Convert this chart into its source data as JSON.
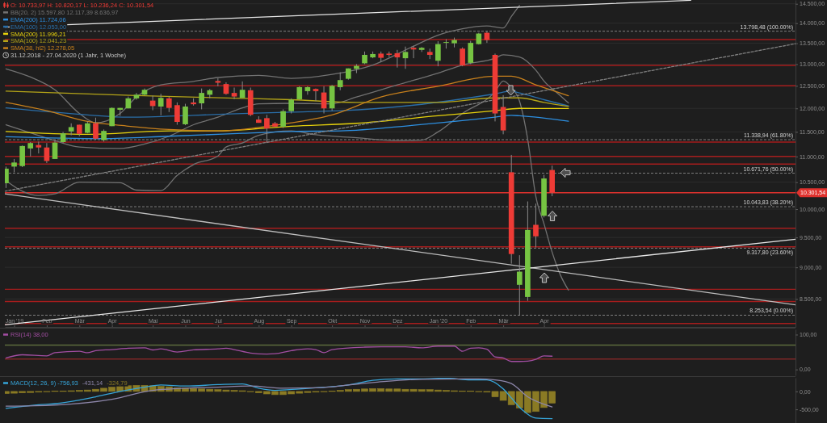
{
  "chart_data": [
    {
      "type": "candlestick",
      "x": [
        "2018-12-31",
        "2019-01-07",
        "2019-01-14",
        "2019-01-21",
        "2019-01-28",
        "2019-02-04",
        "2019-02-11",
        "2019-02-18",
        "2019-02-25",
        "2019-03-04",
        "2019-03-11",
        "2019-03-18",
        "2019-03-25",
        "2019-04-01",
        "2019-04-08",
        "2019-04-15",
        "2019-04-22",
        "2019-04-29",
        "2019-05-06",
        "2019-05-13",
        "2019-05-20",
        "2019-05-27",
        "2019-06-03",
        "2019-06-10",
        "2019-06-17",
        "2019-06-24",
        "2019-07-01",
        "2019-07-08",
        "2019-07-15",
        "2019-07-22",
        "2019-07-29",
        "2019-08-05",
        "2019-08-12",
        "2019-08-19",
        "2019-08-26",
        "2019-09-02",
        "2019-09-09",
        "2019-09-16",
        "2019-09-23",
        "2019-09-30",
        "2019-10-07",
        "2019-10-14",
        "2019-10-21",
        "2019-10-28",
        "2019-11-04",
        "2019-11-11",
        "2019-11-18",
        "2019-11-25",
        "2019-12-02",
        "2019-12-09",
        "2019-12-16",
        "2019-12-23",
        "2019-12-30",
        "2020-01-06",
        "2020-01-13",
        "2020-01-20",
        "2020-01-27",
        "2020-02-03",
        "2020-02-10",
        "2020-02-17",
        "2020-02-24",
        "2020-03-02",
        "2020-03-09",
        "2020-03-16",
        "2020-03-23",
        "2020-03-30",
        "2020-04-06",
        "2020-04-13"
      ],
      "ohlc": [
        [
          10480,
          10800,
          10390,
          10760
        ],
        [
          10800,
          10950,
          10690,
          10880
        ],
        [
          10810,
          11220,
          10790,
          11210
        ],
        [
          11160,
          11290,
          11000,
          11270
        ],
        [
          11230,
          11300,
          11060,
          11180
        ],
        [
          11180,
          11270,
          10870,
          10910
        ],
        [
          10950,
          11330,
          10950,
          11280
        ],
        [
          11290,
          11500,
          11270,
          11470
        ],
        [
          11510,
          11680,
          11430,
          11600
        ],
        [
          11650,
          11650,
          11410,
          11460
        ],
        [
          11480,
          11720,
          11470,
          11680
        ],
        [
          11680,
          11800,
          11340,
          11360
        ],
        [
          11330,
          11550,
          11300,
          11520
        ],
        [
          11620,
          12020,
          11620,
          12010
        ],
        [
          11970,
          12010,
          11840,
          12010
        ],
        [
          12000,
          12260,
          12000,
          12220
        ],
        [
          12220,
          12340,
          12190,
          12300
        ],
        [
          12300,
          12440,
          12290,
          12410
        ],
        [
          12170,
          12280,
          11960,
          12050
        ],
        [
          12040,
          12320,
          11850,
          12230
        ],
        [
          12220,
          12250,
          11920,
          12010
        ],
        [
          12070,
          12130,
          11650,
          11710
        ],
        [
          11660,
          12100,
          11640,
          12040
        ],
        [
          12130,
          12220,
          12060,
          12090
        ],
        [
          12110,
          12440,
          11980,
          12340
        ],
        [
          12300,
          12430,
          12220,
          12400
        ],
        [
          12610,
          12670,
          12490,
          12570
        ],
        [
          12540,
          12580,
          12300,
          12320
        ],
        [
          12340,
          12460,
          12200,
          12260
        ],
        [
          12230,
          12600,
          12230,
          12410
        ],
        [
          12400,
          12460,
          11830,
          11860
        ],
        [
          11760,
          11830,
          11690,
          11690
        ],
        [
          11790,
          11860,
          11270,
          11570
        ],
        [
          11680,
          11710,
          11600,
          11610
        ],
        [
          11610,
          11980,
          11580,
          11940
        ],
        [
          11940,
          12220,
          11890,
          12190
        ],
        [
          12200,
          12490,
          12190,
          12470
        ],
        [
          12380,
          12490,
          12300,
          12470
        ],
        [
          12430,
          12440,
          12160,
          12380
        ],
        [
          12350,
          12490,
          11890,
          12000
        ],
        [
          12000,
          12520,
          11950,
          12500
        ],
        [
          12470,
          12810,
          12400,
          12630
        ],
        [
          12660,
          12900,
          12640,
          12900
        ],
        [
          12890,
          13000,
          12790,
          12960
        ],
        [
          13020,
          13300,
          13000,
          13220
        ],
        [
          13160,
          13300,
          13140,
          13240
        ],
        [
          13250,
          13300,
          13050,
          13150
        ],
        [
          13250,
          13300,
          13170,
          13220
        ],
        [
          13260,
          13340,
          12920,
          13160
        ],
        [
          13140,
          13420,
          12890,
          13290
        ],
        [
          13390,
          13430,
          13140,
          13350
        ],
        [
          13340,
          13410,
          13290,
          13390
        ],
        [
          13290,
          13370,
          13120,
          13220
        ],
        [
          13080,
          13550,
          12950,
          13480
        ],
        [
          13520,
          13600,
          13370,
          13530
        ],
        [
          13500,
          13640,
          13400,
          13580
        ],
        [
          13370,
          13400,
          12950,
          12970
        ],
        [
          13030,
          13560,
          13000,
          13510
        ],
        [
          13480,
          13760,
          13470,
          13740
        ],
        [
          13760,
          13800,
          13510,
          13580
        ],
        [
          13220,
          13250,
          11720,
          11890
        ],
        [
          12030,
          12290,
          11450,
          11530
        ],
        [
          10690,
          11030,
          9060,
          9220
        ],
        [
          8720,
          9200,
          8250,
          8930
        ],
        [
          8530,
          10140,
          8470,
          9630
        ],
        [
          9720,
          10100,
          9330,
          9520
        ],
        [
          9880,
          10640,
          9850,
          10570
        ],
        [
          10733.97,
          10820.17,
          10236.24,
          10301.54
        ]
      ],
      "colors": [
        "#76c442",
        "#76c442",
        "#76c442",
        "#76c442",
        "#ee3b36",
        "#ee3b36",
        "#76c442",
        "#76c442",
        "#76c442",
        "#ee3b36",
        "#76c442",
        "#ee3b36",
        "#76c442",
        "#76c442",
        "#76c442",
        "#76c442",
        "#76c442",
        "#76c442",
        "#ee3b36",
        "#76c442",
        "#ee3b36",
        "#ee3b36",
        "#76c442",
        "#ee3b36",
        "#76c442",
        "#76c442",
        "#ee3b36",
        "#ee3b36",
        "#ee3b36",
        "#76c442",
        "#ee3b36",
        "#ee3b36",
        "#ee3b36",
        "#ee3b36",
        "#76c442",
        "#76c442",
        "#76c442",
        "#76c442",
        "#ee3b36",
        "#ee3b36",
        "#76c442",
        "#76c442",
        "#76c442",
        "#76c442",
        "#76c442",
        "#76c442",
        "#ee3b36",
        "#ee3b36",
        "#ee3b36",
        "#76c442",
        "#ee3b36",
        "#76c442",
        "#ee3b36",
        "#76c442",
        "#76c442",
        "#76c442",
        "#ee3b36",
        "#76c442",
        "#76c442",
        "#ee3b36",
        "#ee3b36",
        "#ee3b36",
        "#ee3b36",
        "#76c442",
        "#76c442",
        "#ee3b36",
        "#76c442",
        "#ee3b36"
      ],
      "series": [
        {
          "type": "line",
          "color": "#727272",
          "x": [
            "2018-12-31",
            "2019-01-21",
            "2019-02-11",
            "2019-03-04",
            "2019-03-18",
            "2019-04-08",
            "2019-04-22",
            "2019-05-13",
            "2019-06-10",
            "2019-07-01",
            "2019-08-05",
            "2019-09-02",
            "2019-10-07",
            "2019-11-11",
            "2019-12-16",
            "2020-01-06",
            "2020-01-27",
            "2020-02-17",
            "2020-03-02",
            "2020-03-09",
            "2020-03-16"
          ],
          "values": [
            12890,
            12700,
            12410,
            11890,
            11690,
            11890,
            12250,
            12520,
            12600,
            12690,
            12740,
            12670,
            12760,
            12980,
            13430,
            13700,
            13860,
            13930,
            13880,
            14170,
            14460
          ]
        },
        {
          "type": "line",
          "name": "BB(20, 2) 15.597,80 12.117,39 8.636,97",
          "color": "#727272",
          "x": [
            "2018-12-31",
            "2019-01-21",
            "2019-02-11",
            "2019-03-04",
            "2019-04-08",
            "2019-04-29",
            "2019-05-20",
            "2019-06-10",
            "2019-07-01",
            "2019-07-22",
            "2019-08-05",
            "2019-09-02",
            "2019-10-07",
            "2019-10-28",
            "2019-12-02",
            "2020-01-06",
            "2020-01-27",
            "2020-02-24",
            "2020-03-02",
            "2020-03-16",
            "2020-03-30",
            "2020-04-06",
            "2020-04-20",
            "2020-04-27"
          ],
          "values": [
            11650,
            11480,
            11320,
            11190,
            11160,
            11250,
            11410,
            11650,
            11810,
            12010,
            12100,
            12110,
            12100,
            12250,
            12520,
            12790,
            12980,
            13140,
            13220,
            13170,
            12860,
            12610,
            12280,
            12117.39
          ]
        },
        {
          "type": "line",
          "color": "#727272",
          "x": [
            "2018-12-31",
            "2019-01-14",
            "2019-01-28",
            "2019-02-11",
            "2019-03-04",
            "2019-04-08",
            "2019-04-22",
            "2019-05-13",
            "2019-05-27",
            "2019-06-10",
            "2019-07-01",
            "2019-07-08",
            "2019-07-22",
            "2019-08-05",
            "2019-09-02",
            "2019-09-23",
            "2019-10-28",
            "2019-12-02",
            "2019-12-23",
            "2020-01-06",
            "2020-01-27",
            "2020-02-24",
            "2020-03-02",
            "2020-03-09",
            "2020-03-16",
            "2020-03-23",
            "2020-03-30",
            "2020-04-06",
            "2020-04-13",
            "2020-04-20",
            "2020-04-27"
          ],
          "values": [
            10530,
            10330,
            10250,
            10280,
            10500,
            10490,
            10350,
            10340,
            10630,
            10840,
            11010,
            11190,
            11270,
            11430,
            11520,
            11440,
            11380,
            11320,
            11330,
            11500,
            11890,
            12370,
            12610,
            12460,
            12160,
            11350,
            10230,
            9740,
            9250,
            8880,
            8636.97
          ]
        },
        {
          "type": "line",
          "name": "EMA(200) 11.724,06",
          "color": "#2d8fe0",
          "x": [
            "2018-12-31",
            "2019-03-25",
            "2019-05-20",
            "2019-07-22",
            "2019-09-02",
            "2019-10-14",
            "2019-12-16",
            "2020-02-24",
            "2020-03-09",
            "2020-03-16",
            "2020-04-27"
          ],
          "values": [
            11400,
            11360,
            11410,
            11470,
            11510,
            11520,
            11640,
            11810,
            11850,
            11840,
            11724.06
          ]
        },
        {
          "type": "line",
          "name": "EMA(100) 12.053,00",
          "color": "#2a6ea8",
          "x": [
            "2018-12-31",
            "2019-03-11",
            "2019-04-15",
            "2019-06-10",
            "2019-07-22",
            "2019-09-02",
            "2019-10-14",
            "2019-12-16",
            "2020-02-24",
            "2020-03-09",
            "2020-03-16",
            "2020-04-06",
            "2020-04-27"
          ],
          "values": [
            12010,
            11860,
            11810,
            11850,
            11890,
            11920,
            11950,
            12070,
            12320,
            12380,
            12340,
            12190,
            12053
          ]
        },
        {
          "type": "line",
          "name": "SMA(200) 11.996,21",
          "color": "#e6d10c",
          "x": [
            "2018-12-31",
            "2019-03-11",
            "2019-05-20",
            "2019-07-01",
            "2019-09-02",
            "2019-10-28",
            "2020-01-06",
            "2020-02-24",
            "2020-03-16",
            "2020-04-27"
          ],
          "values": [
            11510,
            11450,
            11520,
            11520,
            11620,
            11680,
            11840,
            11950,
            12000,
            11996.21
          ]
        },
        {
          "type": "line",
          "name": "SMA(100) 12.041,23",
          "color": "#b4a418",
          "x": [
            "2018-12-31",
            "2019-04-22",
            "2019-07-22",
            "2019-09-02",
            "2019-10-28",
            "2020-01-06",
            "2020-02-24",
            "2020-03-16",
            "2020-04-06",
            "2020-04-27"
          ],
          "values": [
            12380,
            12280,
            12220,
            12190,
            12130,
            12130,
            12230,
            12230,
            12130,
            12041.23
          ]
        },
        {
          "type": "line",
          "name": "SMA(38, hl2) 12.278,05",
          "color": "#c8801c",
          "x": [
            "2018-12-31",
            "2019-02-04",
            "2019-03-11",
            "2019-04-15",
            "2019-05-20",
            "2019-07-01",
            "2019-08-19",
            "2019-09-02",
            "2019-10-07",
            "2019-11-18",
            "2020-01-06",
            "2020-02-24",
            "2020-03-09",
            "2020-03-30",
            "2020-04-27"
          ],
          "values": [
            12130,
            11950,
            11720,
            11620,
            11550,
            11520,
            11640,
            11690,
            11860,
            12250,
            12490,
            12720,
            12720,
            12520,
            12278.05
          ]
        },
        {
          "type": "line",
          "color": "#e6e6e6",
          "x": [
            "2018-12-30",
            "2020-08-10"
          ],
          "values": [
            13900,
            14590
          ]
        },
        {
          "type": "line",
          "color": "#808080",
          "line_style": "dashed",
          "x": [
            "2018-12-30",
            "2020-11-08"
          ],
          "values": [
            10330,
            13490
          ]
        },
        {
          "type": "line",
          "color": "#bdbdbd",
          "x": [
            "2018-12-30",
            "2020-11-08"
          ],
          "values": [
            10280,
            8410
          ]
        },
        {
          "type": "line",
          "color": "#e6e6e6",
          "x": [
            "2018-12-30",
            "2020-11-08"
          ],
          "values": [
            8110,
            9470
          ]
        }
      ],
      "xlim": [
        "2018-12-30",
        "2020-11-08"
      ],
      "xticks": [
        {
          "value": "2019-01-07",
          "label": "Jan '19"
        },
        {
          "value": "2019-02-04",
          "label": "Feb"
        },
        {
          "value": "2019-03-04",
          "label": "Mär"
        },
        {
          "value": "2019-04-01",
          "label": "Apr"
        },
        {
          "value": "2019-05-06",
          "label": "Mai"
        },
        {
          "value": "2019-06-03",
          "label": "Jun"
        },
        {
          "value": "2019-07-01",
          "label": "Jul"
        },
        {
          "value": "2019-08-05",
          "label": "Aug"
        },
        {
          "value": "2019-09-02",
          "label": "Sep"
        },
        {
          "value": "2019-10-07",
          "label": "Okt"
        },
        {
          "value": "2019-11-04",
          "label": "Nov"
        },
        {
          "value": "2019-12-02",
          "label": "Dez"
        },
        {
          "value": "2020-01-06",
          "label": "Jan '20"
        },
        {
          "value": "2020-02-03",
          "label": "Feb"
        },
        {
          "value": "2020-03-02",
          "label": "Mär"
        },
        {
          "value": "2020-04-06",
          "label": "Apr"
        }
      ],
      "ylim": [
        8080,
        14600
      ],
      "yticks": [
        {
          "value": 8500,
          "label": "8.500,00"
        },
        {
          "value": 9000,
          "label": "9.000,00"
        },
        {
          "value": 9500,
          "label": "9.500,00"
        },
        {
          "value": 10000,
          "label": "10.000,00"
        },
        {
          "value": 10500,
          "label": "10.500,00"
        },
        {
          "value": 11000,
          "label": "11.000,00"
        },
        {
          "value": 11500,
          "label": "11.500,00"
        },
        {
          "value": 12000,
          "label": "12.000,00"
        },
        {
          "value": 12500,
          "label": "12.500,00"
        },
        {
          "value": 13000,
          "label": "13.000,00"
        },
        {
          "value": 13500,
          "label": "13.500,00"
        },
        {
          "value": 14000,
          "label": "14.000,00"
        },
        {
          "value": 14500,
          "label": "14.500,00"
        }
      ],
      "log": true,
      "grid": "y",
      "legend": "top left",
      "ref_lines": [
        {
          "axis": "y",
          "value": 13590,
          "color": "#a51d1d"
        },
        {
          "axis": "y",
          "value": 12970,
          "color": "#a51d1d"
        },
        {
          "axis": "y",
          "value": 12500,
          "color": "#a51d1d"
        },
        {
          "axis": "y",
          "value": 11290,
          "color": "#a51d1d"
        },
        {
          "axis": "y",
          "value": 11000,
          "color": "#a51d1d"
        },
        {
          "axis": "y",
          "value": 10850,
          "color": "#a51d1d"
        },
        {
          "axis": "y",
          "value": 9660,
          "color": "#a51d1d"
        },
        {
          "axis": "y",
          "value": 9340,
          "color": "#a51d1d"
        },
        {
          "axis": "y",
          "value": 8650,
          "color": "#a51d1d"
        },
        {
          "axis": "y",
          "value": 8460,
          "color": "#a51d1d"
        },
        {
          "axis": "y",
          "value": 8130,
          "color": "#a51d1d"
        },
        {
          "axis": "y",
          "value": 10301.54,
          "label": "10.301,54",
          "color": "#e0322e"
        },
        {
          "axis": "y",
          "value": 13798.48,
          "label": "13.798,48 (100.00%)",
          "color": "#8a8a8a",
          "line_style": "dashed"
        },
        {
          "axis": "y",
          "value": 11338.94,
          "label": "11.338,94 (61.80%)",
          "color": "#8a8a8a",
          "line_style": "dashed"
        },
        {
          "axis": "y",
          "value": 10671.76,
          "label": "10.671,76 (50.00%)",
          "color": "#8a8a8a",
          "line_style": "dashed"
        },
        {
          "axis": "y",
          "value": 10043.83,
          "label": "10.043,83 (38.20%)",
          "color": "#8a8a8a",
          "line_style": "dashed"
        },
        {
          "axis": "y",
          "value": 9317.8,
          "label": "9.317,80 (23.60%)",
          "color": "#8a8a8a",
          "line_style": "dashed"
        },
        {
          "axis": "y",
          "value": 8253.54,
          "label": "8.253,54 (0.00%)",
          "color": "#8a8a8a",
          "line_style": "dashed"
        }
      ],
      "annotations": [
        "O: 10.733,97 H: 10.820,17 L: 10.236,24 C: 10.301,54",
        "31.12.2018 - 27.04.2020 (1 Jahr, 1 Woche)"
      ]
    },
    {
      "type": "line",
      "series": [
        {
          "name": "RSI(14) 38,00",
          "color": "#a24ea2",
          "x": [
            "2018-12-31",
            "2019-01-14",
            "2019-02-04",
            "2019-02-11",
            "2019-03-04",
            "2019-03-11",
            "2019-03-18",
            "2019-04-01",
            "2019-04-15",
            "2019-04-29",
            "2019-05-06",
            "2019-05-13",
            "2019-05-27",
            "2019-06-10",
            "2019-07-01",
            "2019-07-08",
            "2019-07-15",
            "2019-07-29",
            "2019-08-12",
            "2019-08-19",
            "2019-09-02",
            "2019-09-16",
            "2019-09-23",
            "2019-09-30",
            "2019-10-07",
            "2019-11-04",
            "2019-11-18",
            "2019-12-09",
            "2019-12-23",
            "2020-01-06",
            "2020-01-20",
            "2020-01-27",
            "2020-02-03",
            "2020-02-10",
            "2020-02-17",
            "2020-02-24",
            "2020-03-02",
            "2020-03-09",
            "2020-03-16",
            "2020-03-23",
            "2020-03-30",
            "2020-04-06",
            "2020-04-13"
          ],
          "values": [
            33,
            42,
            39,
            48,
            52,
            48,
            54,
            57,
            61,
            62,
            56,
            59,
            50,
            56,
            59,
            61,
            57,
            47,
            44,
            45,
            54,
            59,
            57,
            48,
            57,
            64,
            65,
            65,
            62,
            67,
            67,
            52,
            61,
            62,
            58,
            36,
            33,
            23,
            23,
            24,
            29,
            39,
            38
          ]
        }
      ],
      "xlim": [
        "2018-12-30",
        "2020-11-08"
      ],
      "ylim": [
        -17,
        115
      ],
      "yticks": [
        {
          "value": 0,
          "label": "0,00"
        },
        {
          "value": 100,
          "label": "100,00"
        }
      ],
      "tick_labels": "y",
      "legend": "top left",
      "ref_lines": [
        {
          "axis": "y",
          "value": 70,
          "color": "#5d6b3c"
        },
        {
          "axis": "y",
          "value": 30,
          "color": "#7d2626"
        }
      ]
    },
    {
      "type": "line",
      "x": [
        "2018-12-31",
        "2019-01-07",
        "2019-01-14",
        "2019-01-21",
        "2019-01-28",
        "2019-02-04",
        "2019-02-11",
        "2019-02-18",
        "2019-02-25",
        "2019-03-04",
        "2019-03-11",
        "2019-03-18",
        "2019-03-25",
        "2019-04-01",
        "2019-04-08",
        "2019-04-15",
        "2019-04-22",
        "2019-04-29",
        "2019-05-06",
        "2019-05-13",
        "2019-05-20",
        "2019-05-27",
        "2019-06-03",
        "2019-06-10",
        "2019-06-17",
        "2019-06-24",
        "2019-07-01",
        "2019-07-08",
        "2019-07-15",
        "2019-07-22",
        "2019-07-29",
        "2019-08-05",
        "2019-08-12",
        "2019-08-19",
        "2019-08-26",
        "2019-09-02",
        "2019-09-09",
        "2019-09-16",
        "2019-09-23",
        "2019-09-30",
        "2019-10-07",
        "2019-10-14",
        "2019-10-21",
        "2019-10-28",
        "2019-11-04",
        "2019-11-11",
        "2019-11-18",
        "2019-11-25",
        "2019-12-02",
        "2019-12-09",
        "2019-12-16",
        "2019-12-23",
        "2019-12-30",
        "2020-01-06",
        "2020-01-13",
        "2020-01-20",
        "2020-01-27",
        "2020-02-03",
        "2020-02-10",
        "2020-02-17",
        "2020-02-24",
        "2020-03-02",
        "2020-03-09",
        "2020-03-16",
        "2020-03-23",
        "2020-03-30",
        "2020-04-06",
        "2020-04-13"
      ],
      "series": [
        {
          "name": "MACD(12, 26, 9) -756,93",
          "color": "#36a4d8",
          "x": [
            "2018-12-31",
            "2019-01-28",
            "2019-02-11",
            "2019-03-04",
            "2019-03-18",
            "2019-04-08",
            "2019-04-29",
            "2019-05-13",
            "2019-06-03",
            "2019-07-01",
            "2019-07-22",
            "2019-08-05",
            "2019-08-19",
            "2019-09-09",
            "2019-09-23",
            "2019-10-21",
            "2019-11-11",
            "2019-12-02",
            "2019-12-23",
            "2020-01-13",
            "2020-02-03",
            "2020-02-17",
            "2020-03-02",
            "2020-03-09",
            "2020-03-16",
            "2020-03-30",
            "2020-04-13"
          ],
          "values": [
            -470,
            -370,
            -340,
            -240,
            -150,
            0,
            120,
            180,
            150,
            190,
            210,
            90,
            30,
            70,
            100,
            180,
            310,
            350,
            350,
            370,
            320,
            320,
            70,
            -180,
            -440,
            -740,
            -756.93
          ]
        },
        {
          "name": "-431,14",
          "color": "#8d86aa",
          "x": [
            "2018-12-31",
            "2019-02-11",
            "2019-04-01",
            "2019-05-06",
            "2019-07-01",
            "2019-07-29",
            "2019-08-26",
            "2019-09-23",
            "2019-11-11",
            "2019-12-23",
            "2020-02-10",
            "2020-02-24",
            "2020-03-09",
            "2020-03-23",
            "2020-04-13"
          ],
          "values": [
            -410,
            -380,
            -220,
            30,
            120,
            150,
            90,
            100,
            250,
            340,
            350,
            320,
            220,
            -150,
            -431.14
          ]
        },
        {
          "name": "-324,79",
          "type": "bar",
          "color": "#8a7a24",
          "values": [
            -60,
            -50,
            -40,
            -30,
            -20,
            -10,
            10,
            10,
            20,
            30,
            40,
            60,
            90,
            120,
            150,
            160,
            170,
            170,
            160,
            140,
            130,
            100,
            90,
            80,
            70,
            60,
            50,
            40,
            30,
            20,
            -10,
            -40,
            -70,
            -90,
            -90,
            -70,
            -50,
            -30,
            -20,
            -10,
            10,
            30,
            50,
            60,
            70,
            80,
            80,
            70,
            70,
            60,
            60,
            50,
            50,
            40,
            30,
            20,
            10,
            10,
            -10,
            -20,
            -150,
            -250,
            -370,
            -460,
            -590,
            -560,
            -450,
            -324.79
          ]
        }
      ],
      "xlim": [
        "2018-12-30",
        "2020-11-08"
      ],
      "ylim": [
        -880,
        380
      ],
      "yticks": [
        {
          "value": -500,
          "label": "-500,00"
        },
        {
          "value": 0,
          "label": "0,00"
        }
      ],
      "tick_labels": "y",
      "legend": "top left"
    }
  ]
}
